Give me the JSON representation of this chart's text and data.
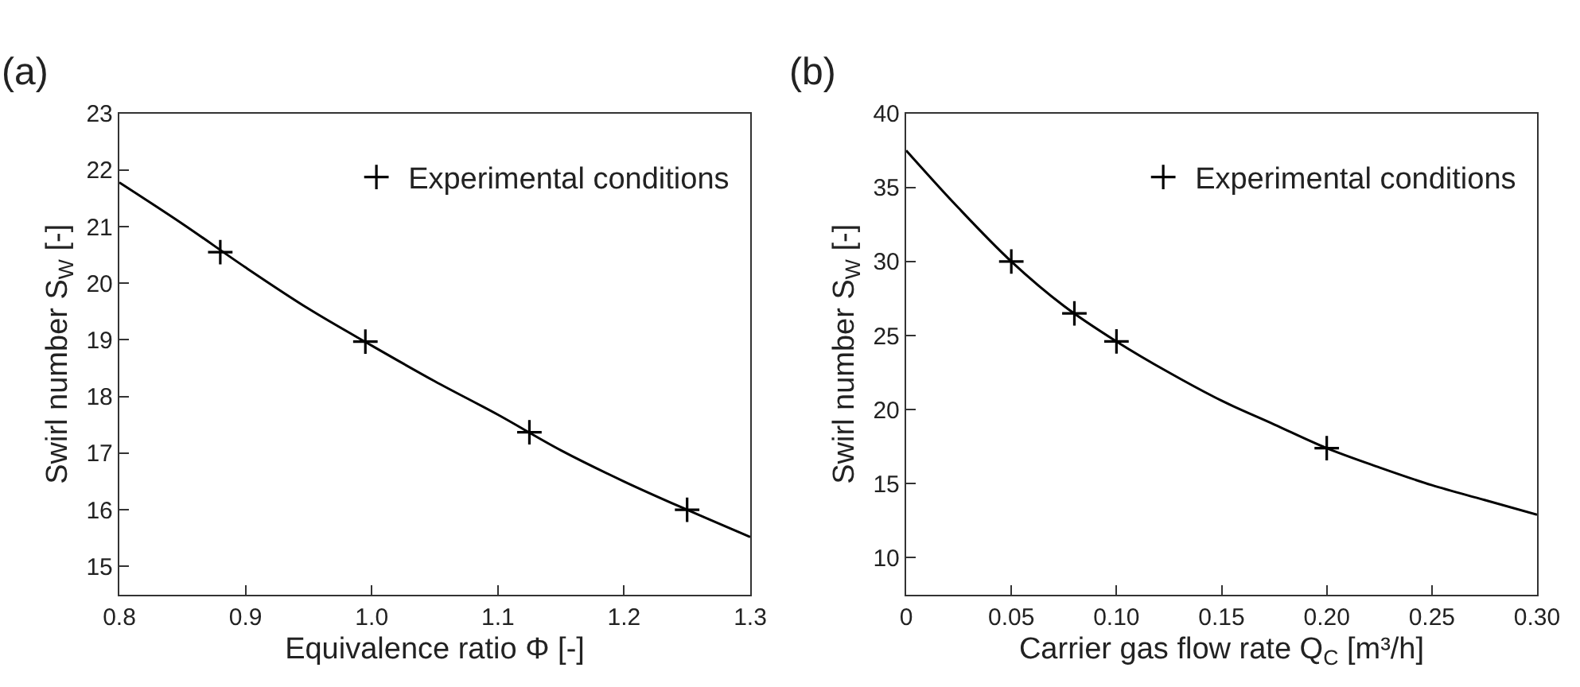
{
  "chart_data": [
    {
      "type": "line",
      "title": "(a)",
      "xlabel": "Equivalence ratio Φ [-]",
      "ylabel": "Swirl number S$_{W}$ [-]",
      "xlim": [
        0.8,
        1.3
      ],
      "ylim": [
        14.5,
        23
      ],
      "xticks": [
        0.8,
        0.9,
        {
          "value": 1.0,
          "label": "1.0"
        },
        1.1,
        1.2,
        1.3
      ],
      "yticks": [
        15,
        16,
        17,
        18,
        19,
        20,
        21,
        22,
        23
      ],
      "legend": "top right",
      "series": [
        {
          "color": "#000000",
          "marker": "none",
          "line_style": "solid",
          "x": [
            0.8,
            0.85,
            0.9,
            0.95,
            1.0,
            1.05,
            1.1,
            1.15,
            1.2,
            1.25,
            1.3
          ],
          "values": [
            21.78,
            21.05,
            20.28,
            19.55,
            18.9,
            18.27,
            17.68,
            17.05,
            16.5,
            16.0,
            15.52
          ]
        },
        {
          "type": "scatter",
          "name": "Experimental conditions",
          "color": "#000000",
          "marker": "cross",
          "x": [
            0.88,
            0.995,
            1.125,
            1.25
          ],
          "values": [
            20.55,
            18.97,
            17.37,
            16.0
          ]
        }
      ]
    },
    {
      "type": "line",
      "title": "(b)",
      "xlabel": "Carrier gas flow rate Q$_{C}$ [m³/h]",
      "ylabel": "Swirl number S$_{W}$ [-]",
      "xlim": [
        0,
        0.3
      ],
      "ylim": [
        7.5,
        40
      ],
      "xticks": [
        0,
        0.05,
        {
          "value": 0.1,
          "label": "0.10"
        },
        0.15,
        {
          "value": 0.2,
          "label": "0.20"
        },
        0.25,
        {
          "value": 0.3,
          "label": "0.30"
        }
      ],
      "yticks": [
        10,
        15,
        20,
        25,
        30,
        35,
        40
      ],
      "legend": "top right",
      "series": [
        {
          "color": "#000000",
          "marker": "none",
          "line_style": "solid",
          "x": [
            0,
            0.025,
            0.05,
            0.075,
            0.1,
            0.125,
            0.15,
            0.175,
            0.2,
            0.225,
            0.25,
            0.275,
            0.3
          ],
          "values": [
            37.5,
            33.6,
            30.0,
            27.0,
            24.6,
            22.5,
            20.6,
            19.0,
            17.4,
            16.1,
            14.9,
            13.9,
            12.9
          ]
        },
        {
          "type": "scatter",
          "name": "Experimental conditions",
          "color": "#000000",
          "marker": "cross",
          "x": [
            0.05,
            0.08,
            0.1,
            0.2
          ],
          "values": [
            30.0,
            26.5,
            24.6,
            17.4
          ]
        }
      ]
    }
  ]
}
